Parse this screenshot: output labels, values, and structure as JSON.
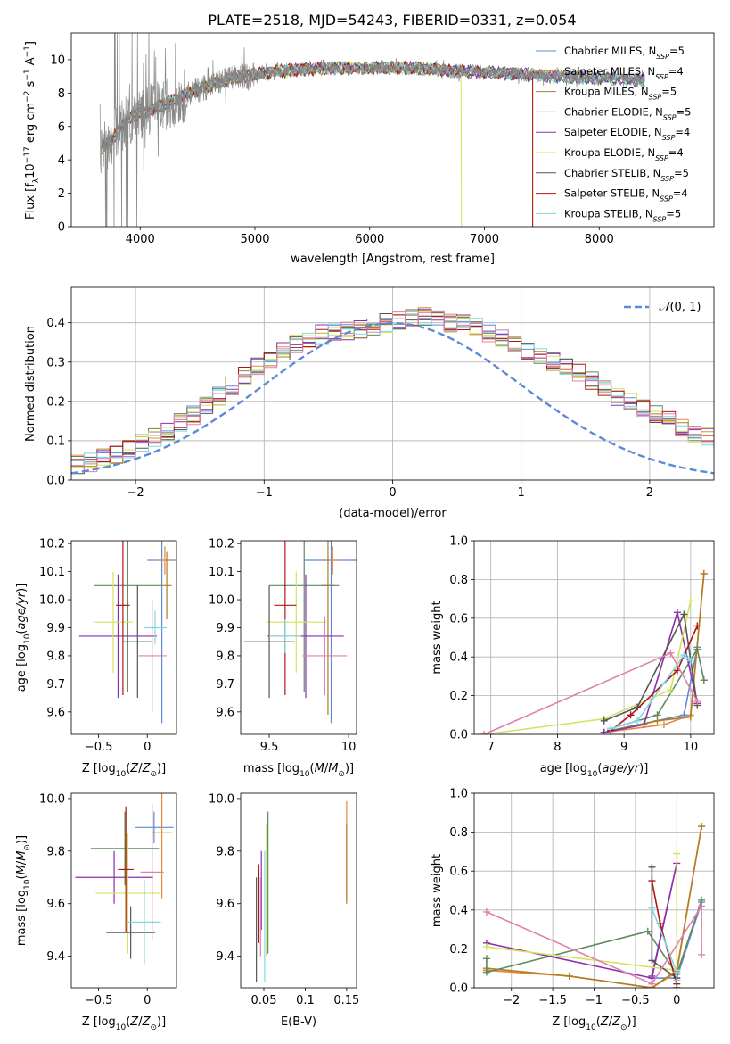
{
  "figure": {
    "title": "PLATE=2518, MJD=54243, FIBERID=0331, z=0.054"
  },
  "colors": {
    "Chabrier MILES": "#5b8bd6",
    "Salpeter MILES": "#e58a3a",
    "Kroupa MILES": "#b07d25",
    "Chabrier ELODIE": "#5f8a5f",
    "Salpeter ELODIE": "#8b2fad",
    "Kroupa ELODIE": "#d4e35c",
    "Chabrier STELIB": "#555555",
    "Salpeter STELIB": "#b01515",
    "Kroupa STELIB": "#7fd8e0",
    "pink": "#e080b0",
    "data": "#888888",
    "normal": "#5b8bd6"
  },
  "chart_data": [
    {
      "id": "spectrum",
      "type": "line",
      "title": "PLATE=2518, MJD=54243, FIBERID=0331, z=0.054",
      "xlabel": "wavelength [Angstrom, rest frame]",
      "ylabel": "Flux [f_λ 10^-17 erg cm^-2 s^-1 A^-1]",
      "xlim": [
        3400,
        9000
      ],
      "ylim": [
        0,
        11.6
      ],
      "xticks": [
        4000,
        5000,
        6000,
        7000,
        8000
      ],
      "yticks": [
        0,
        2,
        4,
        6,
        8,
        10
      ],
      "legend_position": "top-right",
      "legend": [
        {
          "text": "Chabrier MILES, N",
          "sub": "SSP",
          "tail": "=5"
        },
        {
          "text": "Salpeter MILES, N",
          "sub": "SSP",
          "tail": "=4"
        },
        {
          "text": "Kroupa MILES, N",
          "sub": "SSP",
          "tail": "=5"
        },
        {
          "text": "Chabrier ELODIE, N",
          "sub": "SSP",
          "tail": "=5"
        },
        {
          "text": "Salpeter ELODIE, N",
          "sub": "SSP",
          "tail": "=4"
        },
        {
          "text": "Kroupa ELODIE, N",
          "sub": "SSP",
          "tail": "=4"
        },
        {
          "text": "Chabrier STELIB, N",
          "sub": "SSP",
          "tail": "=5"
        },
        {
          "text": "Salpeter STELIB, N",
          "sub": "SSP",
          "tail": "=4"
        },
        {
          "text": "Kroupa STELIB, N",
          "sub": "SSP",
          "tail": "=5"
        }
      ],
      "continuum": {
        "x": [
          3650,
          3750,
          3900,
          4000,
          4100,
          4300,
          4500,
          4800,
          5200,
          5600,
          6000,
          6400,
          6800,
          7200,
          7600,
          8000,
          8400
        ],
        "y": [
          4.6,
          5.2,
          6.5,
          6.8,
          7.0,
          7.6,
          8.2,
          8.9,
          9.3,
          9.5,
          9.5,
          9.5,
          9.3,
          9.2,
          9.0,
          8.9,
          8.8
        ]
      },
      "data_range": [
        3650,
        8400
      ],
      "model_cutoffs": [
        {
          "model": "Kroupa ELODIE",
          "x": 6800
        },
        {
          "model": "Salpeter STELIB",
          "x": 7420
        },
        {
          "model": "Kroupa MILES",
          "x": 7420
        }
      ]
    },
    {
      "id": "residuals",
      "type": "histogram",
      "xlabel": "(data-model)/error",
      "ylabel": "Normed distribution",
      "xlim": [
        -2.5,
        2.5
      ],
      "ylim": [
        0,
        0.49
      ],
      "xticks": [
        -2,
        -1,
        0,
        1,
        2
      ],
      "yticks": [
        0.0,
        0.1,
        0.2,
        0.3,
        0.4
      ],
      "legend": "N(0,1)",
      "legend_position": "top-right",
      "bin_width": 0.1,
      "profile": [
        0.03,
        0.032,
        0.036,
        0.04,
        0.045,
        0.055,
        0.065,
        0.08,
        0.095,
        0.11,
        0.125,
        0.145,
        0.165,
        0.19,
        0.215,
        0.24,
        0.265,
        0.29,
        0.31,
        0.33,
        0.345,
        0.36,
        0.37,
        0.375,
        0.38,
        0.385,
        0.39,
        0.4,
        0.405,
        0.41,
        0.415,
        0.41,
        0.4,
        0.395,
        0.39,
        0.375,
        0.36,
        0.345,
        0.33,
        0.315,
        0.3,
        0.285,
        0.27,
        0.25,
        0.235,
        0.215,
        0.2,
        0.18,
        0.165,
        0.15,
        0.135,
        0.12,
        0.108,
        0.095,
        0.085,
        0.075,
        0.065,
        0.055,
        0.045,
        0.035
      ]
    },
    {
      "id": "age-vs-Z",
      "type": "scatter",
      "xlabel": "Z [log10(Z/Z⊙)]",
      "ylabel": "age [log10(age/yr)]",
      "xlim": [
        -0.78,
        0.3
      ],
      "ylim": [
        9.52,
        10.21
      ],
      "xticks": [
        -0.5,
        0.0
      ],
      "yticks": [
        9.6,
        9.7,
        9.8,
        9.9,
        10.0,
        10.1,
        10.2
      ],
      "points": [
        {
          "model": "Chabrier MILES",
          "x": 0.15,
          "y": 10.14,
          "xerr": 0.15,
          "yerr": 0.58
        },
        {
          "model": "Salpeter MILES",
          "x": 0.18,
          "y": 10.14,
          "xerr": 0.08,
          "yerr": 0.05
        },
        {
          "model": "Kroupa MILES",
          "x": 0.2,
          "y": 10.05,
          "xerr": 0.05,
          "yerr": 0.12
        },
        {
          "model": "Chabrier ELODIE",
          "x": -0.2,
          "y": 10.05,
          "xerr": 0.35,
          "yerr": 0.38
        },
        {
          "model": "Salpeter ELODIE",
          "x": -0.3,
          "y": 9.87,
          "xerr": 0.4,
          "yerr": 0.22
        },
        {
          "model": "Kroupa ELODIE",
          "x": -0.35,
          "y": 9.92,
          "xerr": 0.2,
          "yerr": 0.18
        },
        {
          "model": "Chabrier STELIB",
          "x": -0.1,
          "y": 9.85,
          "xerr": 0.15,
          "yerr": 0.2
        },
        {
          "model": "Salpeter STELIB",
          "x": -0.25,
          "y": 9.98,
          "xerr": 0.07,
          "yerr": 0.32
        },
        {
          "model": "Kroupa STELIB",
          "x": 0.08,
          "y": 9.9,
          "xerr": 0.12,
          "yerr": 0.06
        },
        {
          "model": "pink",
          "x": 0.05,
          "y": 9.8,
          "xerr": 0.15,
          "yerr": 0.2
        }
      ]
    },
    {
      "id": "age-vs-mass",
      "type": "scatter",
      "xlabel": "mass [log10(M/M⊙)]",
      "ylabel": "",
      "xlim": [
        9.32,
        10.05
      ],
      "ylim": [
        9.52,
        10.21
      ],
      "xticks": [
        9.5,
        10.0
      ],
      "yticks": [
        9.6,
        9.7,
        9.8,
        9.9,
        10.0,
        10.1,
        10.2
      ],
      "points": [
        {
          "model": "Chabrier MILES",
          "x": 9.89,
          "y": 10.14,
          "xerr": 0.17,
          "yerr": 0.58
        },
        {
          "model": "Salpeter MILES",
          "x": 9.9,
          "y": 10.14,
          "xerr": 0.04,
          "yerr": 0.05
        },
        {
          "model": "Kroupa MILES",
          "x": 9.87,
          "y": 10.05,
          "xerr": 0.04,
          "yerr": 0.46
        },
        {
          "model": "Chabrier ELODIE",
          "x": 9.72,
          "y": 10.05,
          "xerr": 0.22,
          "yerr": 0.38
        },
        {
          "model": "Salpeter ELODIE",
          "x": 9.73,
          "y": 9.87,
          "xerr": 0.24,
          "yerr": 0.22
        },
        {
          "model": "Kroupa ELODIE",
          "x": 9.67,
          "y": 9.92,
          "xerr": 0.19,
          "yerr": 0.18
        },
        {
          "model": "Chabrier STELIB",
          "x": 9.5,
          "y": 9.85,
          "xerr": 0.16,
          "yerr": 0.2
        },
        {
          "model": "Salpeter STELIB",
          "x": 9.6,
          "y": 9.98,
          "xerr": 0.07,
          "yerr": 0.32
        },
        {
          "model": "Kroupa STELIB",
          "x": 9.6,
          "y": 9.87,
          "xerr": 0.1,
          "yerr": 0.06
        },
        {
          "model": "pink",
          "x": 9.85,
          "y": 9.8,
          "xerr": 0.14,
          "yerr": 0.14
        }
      ]
    },
    {
      "id": "mass-weight-vs-age",
      "type": "line",
      "xlabel": "age [log10(age/yr)]",
      "ylabel": "mass weight",
      "xlim": [
        6.75,
        10.35
      ],
      "ylim": [
        0,
        1.0
      ],
      "xticks": [
        7,
        8,
        9,
        10
      ],
      "yticks": [
        0.0,
        0.2,
        0.4,
        0.6,
        0.8,
        1.0
      ],
      "series": [
        {
          "model": "Chabrier MILES",
          "x": [
            8.8,
            9.9,
            10.1
          ],
          "y": [
            0.02,
            0.1,
            0.45
          ]
        },
        {
          "model": "Salpeter MILES",
          "x": [
            8.7,
            9.6,
            10.0,
            10.2
          ],
          "y": [
            0.01,
            0.05,
            0.1,
            0.83
          ]
        },
        {
          "model": "Kroupa MILES",
          "x": [
            8.7,
            9.5,
            10.0,
            10.2
          ],
          "y": [
            0.01,
            0.07,
            0.09,
            0.83
          ]
        },
        {
          "model": "Chabrier ELODIE",
          "x": [
            8.8,
            9.5,
            10.1,
            10.2
          ],
          "y": [
            0.03,
            0.1,
            0.44,
            0.28
          ]
        },
        {
          "model": "Salpeter ELODIE",
          "x": [
            8.7,
            9.3,
            9.8,
            10.1
          ],
          "y": [
            0.01,
            0.05,
            0.63,
            0.16
          ]
        },
        {
          "model": "Kroupa ELODIE",
          "x": [
            6.9,
            8.7,
            9.7,
            10.0
          ],
          "y": [
            0.0,
            0.08,
            0.23,
            0.69
          ]
        },
        {
          "model": "Chabrier STELIB",
          "x": [
            8.7,
            9.2,
            9.9,
            10.1
          ],
          "y": [
            0.07,
            0.14,
            0.62,
            0.15
          ]
        },
        {
          "model": "Salpeter STELIB",
          "x": [
            8.8,
            9.1,
            9.8,
            10.1
          ],
          "y": [
            0.02,
            0.1,
            0.33,
            0.56
          ]
        },
        {
          "model": "Kroupa STELIB",
          "x": [
            8.8,
            9.2,
            9.9,
            10.0
          ],
          "y": [
            0.03,
            0.07,
            0.41,
            0.38
          ]
        },
        {
          "model": "pink",
          "x": [
            6.9,
            9.7,
            10.1
          ],
          "y": [
            0.0,
            0.42,
            0.17
          ]
        }
      ]
    },
    {
      "id": "mass-vs-Z",
      "type": "scatter",
      "xlabel": "Z [log10(Z/Z⊙)]",
      "ylabel": "mass [log10(M/M⊙)]",
      "xlim": [
        -0.78,
        0.3
      ],
      "ylim": [
        9.28,
        10.02
      ],
      "xticks": [
        -0.5,
        0.0
      ],
      "yticks": [
        9.4,
        9.6,
        9.8,
        10.0
      ],
      "points": [
        {
          "model": "Chabrier MILES",
          "x": 0.07,
          "y": 9.89,
          "xerr": 0.2,
          "yerr": 0.06
        },
        {
          "model": "Salpeter MILES",
          "x": 0.15,
          "y": 9.87,
          "xerr": 0.1,
          "yerr": 0.25
        },
        {
          "model": "Chabrier ELODIE",
          "x": -0.23,
          "y": 9.81,
          "xerr": 0.35,
          "yerr": 0.14
        },
        {
          "model": "Salpeter ELODIE",
          "x": -0.34,
          "y": 9.7,
          "xerr": 0.4,
          "yerr": 0.1
        },
        {
          "model": "Kroupa ELODIE",
          "x": -0.2,
          "y": 9.64,
          "xerr": 0.33,
          "yerr": 0.23
        },
        {
          "model": "Chabrier STELIB",
          "x": -0.17,
          "y": 9.49,
          "xerr": 0.25,
          "yerr": 0.1
        },
        {
          "model": "Salpeter STELIB",
          "x": -0.22,
          "y": 9.73,
          "xerr": 0.08,
          "yerr": 0.24
        },
        {
          "model": "Kroupa STELIB",
          "x": -0.03,
          "y": 9.53,
          "xerr": 0.17,
          "yerr": 0.16
        },
        {
          "model": "pink",
          "x": 0.05,
          "y": 9.72,
          "xerr": 0.12,
          "yerr": 0.26
        }
      ]
    },
    {
      "id": "mass-vs-EBV",
      "type": "scatter",
      "xlabel": "E(B-V)",
      "ylabel": "",
      "xlim": [
        0.022,
        0.162
      ],
      "ylim": [
        9.28,
        10.02
      ],
      "xticks": [
        0.05,
        0.1,
        0.15
      ],
      "yticks": [
        9.4,
        9.6,
        9.8,
        10.0
      ],
      "points": [
        {
          "model": "Chabrier STELIB",
          "x": 0.041,
          "y": 9.5,
          "yerr": 0.2
        },
        {
          "model": "Salpeter STELIB",
          "x": 0.044,
          "y": 9.6,
          "yerr": 0.15
        },
        {
          "model": "Salpeter ELODIE",
          "x": 0.047,
          "y": 9.65,
          "yerr": 0.15
        },
        {
          "model": "pink",
          "x": 0.046,
          "y": 9.55,
          "yerr": 0.15
        },
        {
          "model": "Kroupa STELIB",
          "x": 0.051,
          "y": 9.55,
          "yerr": 0.25
        },
        {
          "model": "Kroupa ELODIE",
          "x": 0.053,
          "y": 9.65,
          "yerr": 0.25
        },
        {
          "model": "Chabrier ELODIE",
          "x": 0.055,
          "y": 9.68,
          "yerr": 0.27
        },
        {
          "model": "Salpeter MILES",
          "x": 0.15,
          "y": 9.8,
          "yerr": 0.19
        },
        {
          "model": "Kroupa MILES",
          "x": 0.15,
          "y": 9.75,
          "yerr": 0.15
        }
      ]
    },
    {
      "id": "mass-weight-vs-Z",
      "type": "line",
      "xlabel": "Z [log10(Z/Z⊙)]",
      "ylabel": "mass weight",
      "xlim": [
        -2.45,
        0.45
      ],
      "ylim": [
        0,
        1.0
      ],
      "xticks": [
        -2.0,
        -1.5,
        -1.0,
        -0.5,
        0.0
      ],
      "yticks": [
        0.0,
        0.2,
        0.4,
        0.6,
        0.8,
        1.0
      ],
      "series": [
        {
          "model": "Chabrier MILES",
          "x": [
            -0.3,
            0.0,
            0.3
          ],
          "y": [
            0.05,
            0.05,
            0.44
          ]
        },
        {
          "model": "Salpeter MILES",
          "x": [
            -2.3,
            -1.3,
            -0.3,
            0.0,
            0.3
          ],
          "y": [
            0.09,
            0.06,
            0.0,
            0.08,
            0.83
          ]
        },
        {
          "model": "Kroupa MILES",
          "x": [
            -2.3,
            -1.3,
            -0.3,
            0.0,
            0.3
          ],
          "y": [
            0.1,
            0.06,
            0.0,
            0.09,
            0.83
          ]
        },
        {
          "model": "Chabrier ELODIE",
          "x": [
            -2.3,
            -2.3,
            -0.35,
            0.0,
            0.3
          ],
          "y": [
            0.15,
            0.08,
            0.29,
            0.07,
            0.45
          ]
        },
        {
          "model": "Salpeter ELODIE",
          "x": [
            -2.3,
            -0.3,
            0.0,
            -0.3
          ],
          "y": [
            0.23,
            0.05,
            0.64,
            0.06
          ]
        },
        {
          "model": "Kroupa ELODIE",
          "x": [
            -2.3,
            0.0,
            0.0
          ],
          "y": [
            0.21,
            0.09,
            0.69
          ]
        },
        {
          "model": "Chabrier STELIB",
          "x": [
            -0.3,
            -0.3,
            0.0,
            0.0
          ],
          "y": [
            0.62,
            0.14,
            0.05,
            0.0
          ]
        },
        {
          "model": "Salpeter STELIB",
          "x": [
            -0.3,
            -0.2,
            0.0
          ],
          "y": [
            0.55,
            0.33,
            0.02
          ]
        },
        {
          "model": "Kroupa STELIB",
          "x": [
            -0.3,
            0.0,
            0.0
          ],
          "y": [
            0.41,
            0.08,
            0.04
          ]
        },
        {
          "model": "pink",
          "x": [
            -2.3,
            -0.3,
            0.3,
            0.3
          ],
          "y": [
            0.39,
            0.02,
            0.42,
            0.17
          ]
        }
      ]
    }
  ]
}
